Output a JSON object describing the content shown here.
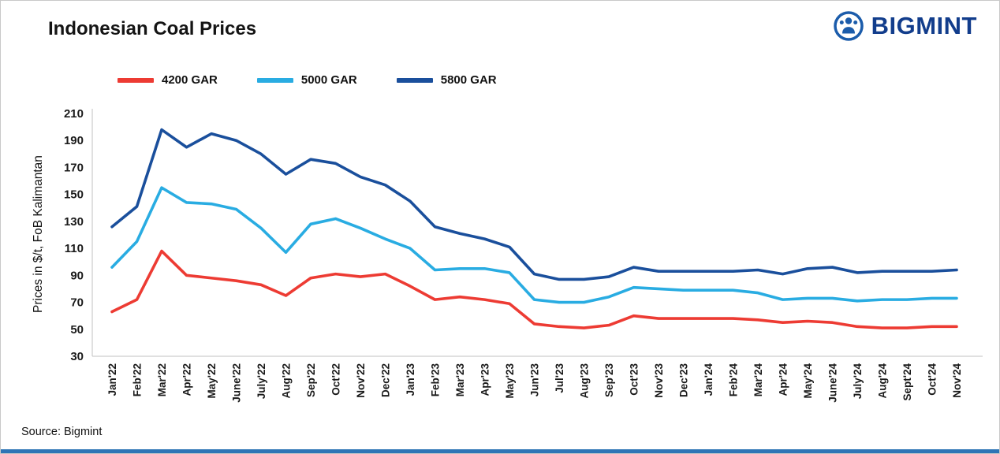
{
  "page": {
    "title": "Indonesian Coal Prices",
    "source": "Source: Bigmint",
    "brand": "BIGMINT",
    "accent_bar_color": "#2e75b6",
    "brand_color": "#123d8c"
  },
  "chart_data": {
    "type": "line",
    "title": "Indonesian Coal Prices",
    "xlabel": "",
    "ylabel": "Prices in $/t, FoB Kalimantan",
    "ylim": [
      30,
      210
    ],
    "yticks": [
      30,
      50,
      70,
      90,
      110,
      130,
      150,
      170,
      190,
      210
    ],
    "grid": false,
    "legend_position": "top-left",
    "categories": [
      "Jan'22",
      "Feb'22",
      "Mar'22",
      "Apr'22",
      "May'22",
      "June'22",
      "July'22",
      "Aug'22",
      "Sep'22",
      "Oct'22",
      "Nov'22",
      "Dec'22",
      "Jan'23",
      "Feb'23",
      "Mar'23",
      "Apr'23",
      "May'23",
      "Jun'23",
      "Jul'23",
      "Aug'23",
      "Sep'23",
      "Oct'23",
      "Nov'23",
      "Dec'23",
      "Jan'24",
      "Feb'24",
      "Mar'24",
      "Apr'24",
      "May'24",
      "June'24",
      "July'24",
      "Aug'24",
      "Sept'24",
      "Oct'24",
      "Nov'24"
    ],
    "series": [
      {
        "name": "4200 GAR",
        "color": "#ed3b33",
        "values": [
          63,
          72,
          108,
          90,
          88,
          86,
          83,
          75,
          88,
          91,
          89,
          91,
          82,
          72,
          74,
          72,
          69,
          54,
          52,
          51,
          53,
          60,
          58,
          58,
          58,
          58,
          57,
          55,
          56,
          55,
          52,
          51,
          51,
          52,
          52
        ]
      },
      {
        "name": "5000 GAR",
        "color": "#29ace2",
        "values": [
          96,
          115,
          155,
          144,
          143,
          139,
          125,
          107,
          128,
          132,
          125,
          117,
          110,
          94,
          95,
          95,
          92,
          72,
          70,
          70,
          74,
          81,
          80,
          79,
          79,
          79,
          77,
          72,
          73,
          73,
          71,
          72,
          72,
          73,
          73
        ]
      },
      {
        "name": "5800 GAR",
        "color": "#1a4f9c",
        "values": [
          126,
          141,
          198,
          185,
          195,
          190,
          180,
          165,
          176,
          173,
          163,
          157,
          145,
          126,
          121,
          117,
          111,
          91,
          87,
          87,
          89,
          96,
          93,
          93,
          93,
          93,
          94,
          91,
          95,
          96,
          92,
          93,
          93,
          93,
          94
        ]
      }
    ]
  }
}
